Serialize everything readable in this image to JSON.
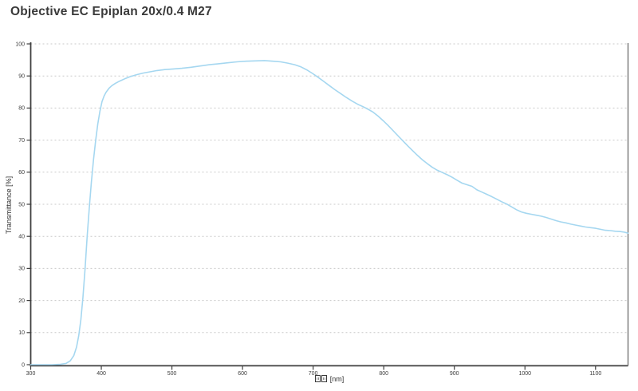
{
  "title": "Objective EC Epiplan 20x/0.4 M27",
  "chart_data": {
    "type": "line",
    "title": "Objective EC Epiplan 20x/0.4 M27",
    "xlabel": "[nm]",
    "xlabel_prefix": "two missing-glyph boxes",
    "ylabel": "Transmittance [%]",
    "xlim": [
      300,
      1146
    ],
    "ylim": [
      0,
      100
    ],
    "x_ticks": [
      300,
      400,
      500,
      600,
      700,
      800,
      900,
      1000,
      1100
    ],
    "y_ticks": [
      0,
      10,
      20,
      30,
      40,
      50,
      60,
      70,
      80,
      90,
      100
    ],
    "grid": "horizontal-dashed",
    "legend": "none",
    "colors": {
      "line": "#a5d7f0",
      "axis": "#3f3f3f",
      "right_border": "#6b6b6b",
      "grid": "#c9c9c9",
      "tick_text": "#3d3d3d",
      "title_text": "#3a3a3a"
    },
    "series": [
      {
        "name": "Transmittance",
        "points": [
          [
            300,
            0
          ],
          [
            315,
            0
          ],
          [
            330,
            0
          ],
          [
            342,
            0.1
          ],
          [
            350,
            0.4
          ],
          [
            356,
            1.2
          ],
          [
            361,
            2.8
          ],
          [
            365,
            5.5
          ],
          [
            368,
            9
          ],
          [
            371,
            14
          ],
          [
            374,
            21
          ],
          [
            377,
            30
          ],
          [
            380,
            40
          ],
          [
            383,
            49
          ],
          [
            386,
            57
          ],
          [
            389,
            64
          ],
          [
            392,
            70
          ],
          [
            395,
            75
          ],
          [
            398,
            79
          ],
          [
            401,
            82
          ],
          [
            404,
            83.8
          ],
          [
            407,
            85
          ],
          [
            411,
            86.2
          ],
          [
            415,
            87
          ],
          [
            420,
            87.7
          ],
          [
            426,
            88.4
          ],
          [
            433,
            89.1
          ],
          [
            441,
            89.8
          ],
          [
            450,
            90.4
          ],
          [
            459,
            90.9
          ],
          [
            469,
            91.3
          ],
          [
            479,
            91.7
          ],
          [
            490,
            92
          ],
          [
            502,
            92.2
          ],
          [
            514,
            92.4
          ],
          [
            527,
            92.7
          ],
          [
            540,
            93.1
          ],
          [
            553,
            93.5
          ],
          [
            566,
            93.8
          ],
          [
            579,
            94.1
          ],
          [
            592,
            94.4
          ],
          [
            605,
            94.6
          ],
          [
            618,
            94.7
          ],
          [
            631,
            94.8
          ],
          [
            643,
            94.6
          ],
          [
            654,
            94.4
          ],
          [
            664,
            94
          ],
          [
            674,
            93.5
          ],
          [
            683,
            92.8
          ],
          [
            691,
            91.9
          ],
          [
            699,
            90.8
          ],
          [
            707,
            89.6
          ],
          [
            715,
            88.3
          ],
          [
            723,
            87
          ],
          [
            731,
            85.7
          ],
          [
            739,
            84.5
          ],
          [
            747,
            83.3
          ],
          [
            755,
            82.2
          ],
          [
            763,
            81.2
          ],
          [
            771,
            80.4
          ],
          [
            778,
            79.6
          ],
          [
            785,
            78.7
          ],
          [
            792,
            77.5
          ],
          [
            799,
            76.1
          ],
          [
            806,
            74.6
          ],
          [
            813,
            73
          ],
          [
            820,
            71.4
          ],
          [
            827,
            69.8
          ],
          [
            834,
            68.2
          ],
          [
            841,
            66.7
          ],
          [
            848,
            65.2
          ],
          [
            855,
            63.8
          ],
          [
            862,
            62.6
          ],
          [
            869,
            61.5
          ],
          [
            876,
            60.6
          ],
          [
            883,
            59.9
          ],
          [
            890,
            59.2
          ],
          [
            897,
            58.4
          ],
          [
            904,
            57.5
          ],
          [
            911,
            56.6
          ],
          [
            918,
            56.1
          ],
          [
            925,
            55.6
          ],
          [
            932,
            54.5
          ],
          [
            939,
            53.8
          ],
          [
            946,
            53.1
          ],
          [
            953,
            52.4
          ],
          [
            960,
            51.6
          ],
          [
            967,
            50.8
          ],
          [
            974,
            50.1
          ],
          [
            981,
            49.2
          ],
          [
            988,
            48.3
          ],
          [
            995,
            47.6
          ],
          [
            1002,
            47.2
          ],
          [
            1009,
            46.9
          ],
          [
            1016,
            46.6
          ],
          [
            1023,
            46.3
          ],
          [
            1030,
            45.9
          ],
          [
            1037,
            45.4
          ],
          [
            1044,
            44.9
          ],
          [
            1051,
            44.5
          ],
          [
            1058,
            44.2
          ],
          [
            1065,
            43.8
          ],
          [
            1072,
            43.5
          ],
          [
            1079,
            43.2
          ],
          [
            1086,
            42.9
          ],
          [
            1093,
            42.7
          ],
          [
            1100,
            42.5
          ],
          [
            1107,
            42.2
          ],
          [
            1114,
            41.9
          ],
          [
            1121,
            41.8
          ],
          [
            1128,
            41.6
          ],
          [
            1135,
            41.5
          ],
          [
            1141,
            41.3
          ],
          [
            1146,
            41
          ]
        ]
      }
    ]
  }
}
